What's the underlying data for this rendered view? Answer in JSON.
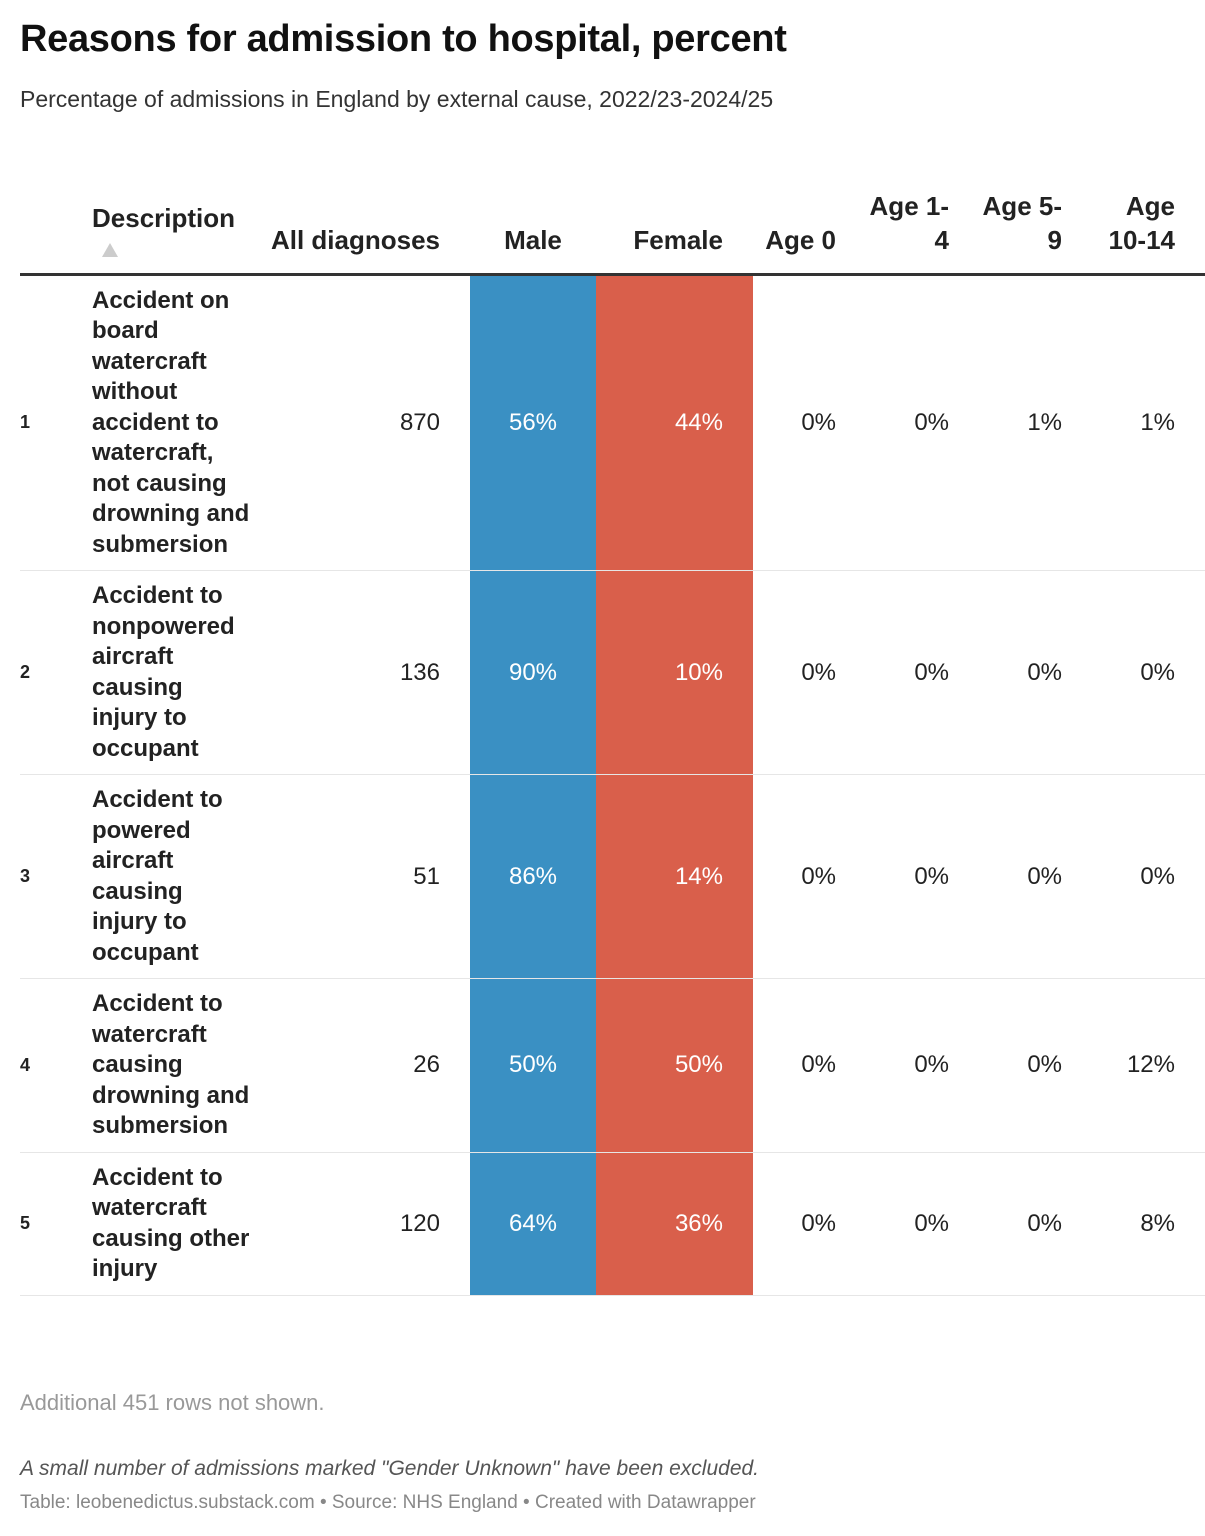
{
  "header": {
    "title": "Reasons for admission to hospital, percent",
    "subtitle": "Percentage of admissions in England by external cause, 2022/23-2024/25"
  },
  "table": {
    "columns": [
      "Description",
      "All diagnoses",
      "Male",
      "Female",
      "Age 0",
      "Age 1-4",
      "Age 5-9",
      "Age 10-14"
    ],
    "rows": [
      [
        "1",
        "Accident on board watercraft without accident to watercraft, not causing drowning and submersion",
        "870",
        "56%",
        "44%",
        "0%",
        "0%",
        "1%",
        "1%"
      ],
      [
        "2",
        "Accident to nonpowered aircraft causing injury to occupant",
        "136",
        "90%",
        "10%",
        "0%",
        "0%",
        "0%",
        "0%"
      ],
      [
        "3",
        "Accident to powered aircraft causing injury to occupant",
        "51",
        "86%",
        "14%",
        "0%",
        "0%",
        "0%",
        "0%"
      ],
      [
        "4",
        "Accident to watercraft causing drowning and submersion",
        "26",
        "50%",
        "50%",
        "0%",
        "0%",
        "0%",
        "12%"
      ],
      [
        "5",
        "Accident to watercraft causing other injury",
        "120",
        "64%",
        "36%",
        "0%",
        "0%",
        "0%",
        "8%"
      ]
    ],
    "more_rows": "Additional 451 rows not shown."
  },
  "footer": {
    "note": "A small number of admissions marked \"Gender Unknown\" have been excluded.",
    "credit": "Table: leobenedictus.substack.com • Source: NHS England • Created with Datawrapper"
  }
}
